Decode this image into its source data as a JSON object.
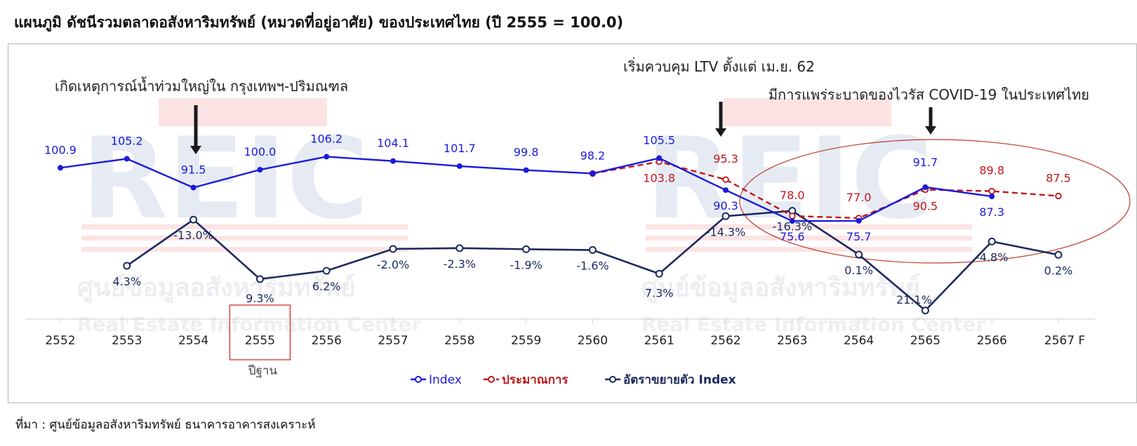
{
  "title": "แผนภูมิ  ดัชนีรวมตลาดอสังหาริมทรัพย์ (หมวดที่อยู่อาศัย) ของประเทศไทย (ปี 2555 = 100.0)",
  "source": "ที่มา : ศูนย์ข้อมูลอสังหาริมทรัพย์ ธนาคารอาคารสงเคราะห์",
  "colors": {
    "index": "#1a1adb",
    "forecast": "#c0171d",
    "growth": "#1b2a5e",
    "ellipse": "#c0392b",
    "baseline_box": "#d62020"
  },
  "watermark": {
    "logo": "REIC",
    "thai": "ศูนย์ข้อมูลอสังหาริมทรัพย์",
    "english": "Real Estate Information Center"
  },
  "chart_data": {
    "type": "line",
    "categories": [
      "2552",
      "2553",
      "2554",
      "2555",
      "2556",
      "2557",
      "2558",
      "2559",
      "2560",
      "2561",
      "2562",
      "2563",
      "2564",
      "2565",
      "2566",
      "2567 F"
    ],
    "base_year": "2555",
    "base_label": "ปีฐาน",
    "series": [
      {
        "name": "Index",
        "values": [
          100.9,
          105.2,
          91.5,
          100.0,
          106.2,
          104.1,
          101.7,
          99.8,
          98.2,
          105.5,
          90.3,
          75.6,
          75.7,
          91.7,
          87.3,
          null
        ],
        "labels": [
          "100.9",
          "105.2",
          "91.5",
          "100.0",
          "106.2",
          "104.1",
          "101.7",
          "99.8",
          "98.2",
          "105.5",
          "90.3",
          "75.6",
          "75.7",
          "91.7",
          "87.3",
          ""
        ]
      },
      {
        "name": "ประมาณการ",
        "values": [
          null,
          null,
          null,
          null,
          null,
          null,
          null,
          null,
          98.2,
          103.8,
          95.3,
          78.0,
          77.0,
          90.5,
          89.8,
          87.5
        ],
        "labels": [
          "",
          "",
          "",
          "",
          "",
          "",
          "",
          "",
          "",
          "103.8",
          "95.3",
          "78.0",
          "77.0",
          "90.5",
          "89.8",
          "87.5"
        ]
      },
      {
        "name": "อัตราขยายตัว Index",
        "values": [
          null,
          4.3,
          -13.0,
          9.3,
          6.2,
          -2.0,
          -2.3,
          -1.9,
          -1.6,
          7.3,
          -14.3,
          -16.3,
          0.1,
          21.1,
          -4.8,
          0.2
        ],
        "labels": [
          "",
          "4.3%",
          "-13.0%",
          "9.3%",
          "6.2%",
          "-2.0%",
          "-2.3%",
          "-1.9%",
          "-1.6%",
          "7.3%",
          "-14.3%",
          "-16.3%",
          "0.1%",
          "21.1%",
          "-4.8%",
          "0.2%"
        ]
      }
    ],
    "annotations": [
      {
        "text": "เกิดเหตุการณ์น้ำท่วมใหญ่ใน กรุงเทพฯ-ปริมณฑล",
        "category": "2554"
      },
      {
        "text": "เริ่มควบคุม LTV ตั้งแต่ เม.ย. 62",
        "category": "2562"
      },
      {
        "text": "มีการแพร่ระบาดของไวรัส COVID-19 ในประเทศไทย",
        "category": "2565"
      }
    ],
    "legend": [
      "Index",
      "ประมาณการ",
      "อัตราขยายตัว Index"
    ],
    "legend_position": "bottom-center"
  }
}
